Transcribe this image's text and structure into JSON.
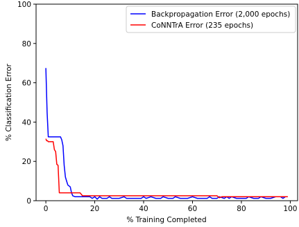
{
  "chart_data": {
    "type": "line",
    "xlabel": "% Training Completed",
    "ylabel": "% Classification Error",
    "xlim": [
      -4,
      103
    ],
    "ylim": [
      0,
      100
    ],
    "xticks": [
      0,
      20,
      40,
      60,
      80,
      100
    ],
    "yticks": [
      0,
      20,
      40,
      60,
      80,
      100
    ],
    "xtick_labels": [
      "0",
      "20",
      "40",
      "60",
      "80",
      "100"
    ],
    "ytick_labels": [
      "0",
      "20",
      "40",
      "60",
      "80",
      "100"
    ],
    "grid": false,
    "legend_position": "top-right",
    "series": [
      {
        "name": "Backpropagation Error (2,000 epochs)",
        "color": "#0000ff",
        "x": [
          0,
          0.5,
          1,
          2,
          3,
          4,
          5,
          6,
          6.5,
          7,
          7.5,
          8,
          8.5,
          9,
          10,
          10.5,
          11,
          12,
          13,
          15,
          18,
          19,
          20,
          21,
          22,
          23,
          25,
          26,
          27,
          28,
          30,
          32,
          33,
          35,
          37,
          39,
          40,
          41,
          43,
          45,
          47,
          48,
          50,
          52,
          53,
          55,
          57,
          58,
          60,
          62,
          64,
          66,
          67,
          68,
          70,
          71,
          73,
          74,
          75,
          76,
          78,
          80,
          82,
          83,
          85,
          87,
          88,
          90,
          92,
          94,
          96,
          97,
          98
        ],
        "y": [
          67.5,
          45,
          32.5,
          32.5,
          32.5,
          32.5,
          32.5,
          32.5,
          31,
          28,
          18,
          12,
          10,
          8,
          7,
          4,
          2.5,
          2,
          2,
          2,
          2,
          1.2,
          2,
          0.8,
          2,
          1.2,
          1.2,
          2,
          1.2,
          1.2,
          1.2,
          2,
          1.2,
          1.2,
          1.2,
          1.2,
          2,
          1.2,
          2,
          1.2,
          1.2,
          2,
          1.2,
          1.2,
          2,
          1.2,
          1.2,
          1.2,
          2,
          1.2,
          1.2,
          1.2,
          2,
          1.2,
          1.2,
          2,
          1.2,
          2,
          1.2,
          2,
          1.2,
          1.2,
          1.2,
          2,
          1.2,
          1.2,
          2,
          1.2,
          1.2,
          2,
          2,
          1.2,
          2
        ]
      },
      {
        "name": "CoNNTrA Error (235 epochs)",
        "color": "#ff0000",
        "x": [
          0,
          0.3,
          0.7,
          1,
          2,
          3,
          3.5,
          4,
          4.5,
          5,
          5.5,
          6,
          8,
          10,
          12,
          14,
          15,
          18,
          20,
          25,
          30,
          35,
          40,
          45,
          50,
          55,
          60,
          65,
          70,
          71,
          72,
          75,
          80,
          85,
          90,
          95,
          97,
          99
        ],
        "y": [
          31.5,
          30.5,
          30.5,
          30,
          30,
          30,
          26,
          25,
          18.5,
          18,
          4,
          4,
          4,
          4,
          4,
          4,
          2.5,
          2.5,
          2.5,
          2.5,
          2.5,
          2.5,
          2.5,
          2.5,
          2.5,
          2.5,
          2.5,
          2.5,
          2.5,
          1.5,
          2,
          2,
          2,
          2,
          2,
          2,
          2,
          2
        ]
      }
    ]
  }
}
